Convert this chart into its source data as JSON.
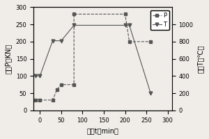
{
  "title": "",
  "xlabel": "时间t（min）",
  "ylabel_left": "压力P（KN）",
  "ylabel_right": "温度T（℃）",
  "P_x": [
    -10,
    0,
    30,
    40,
    50,
    80,
    80,
    200,
    210,
    260
  ],
  "P_y": [
    30,
    30,
    30,
    60,
    75,
    75,
    280,
    280,
    200,
    200
  ],
  "T_x": [
    -10,
    0,
    30,
    50,
    80,
    200,
    210,
    260
  ],
  "T_y": [
    400,
    400,
    810,
    810,
    990,
    990,
    990,
    200
  ],
  "xlim": [
    -15,
    310
  ],
  "ylim_left": [
    0,
    300
  ],
  "ylim_right": [
    0,
    1200
  ],
  "xticks": [
    0,
    50,
    100,
    150,
    200,
    250,
    300
  ],
  "yticks_left": [
    0,
    50,
    100,
    150,
    200,
    250,
    300
  ],
  "yticks_right": [
    0,
    200,
    400,
    600,
    800,
    1000
  ],
  "line_color": "#555555",
  "marker_P": "s",
  "marker_T": "v",
  "legend_labels": [
    "P",
    "T"
  ],
  "figsize": [
    3.0,
    2.0
  ],
  "dpi": 100
}
